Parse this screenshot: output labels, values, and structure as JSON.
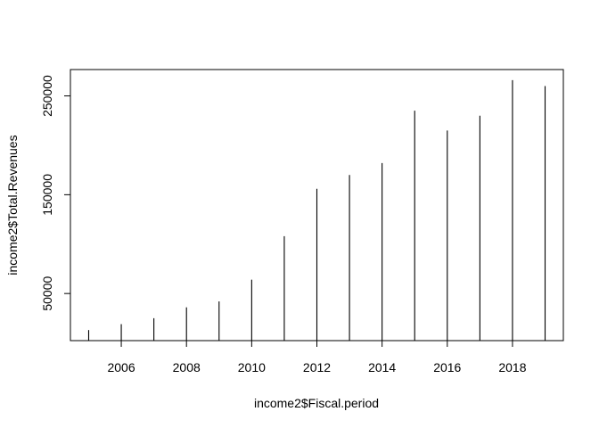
{
  "chart_data": {
    "type": "bar",
    "style": "histogram-lines",
    "title": "",
    "xlabel": "income2$Fiscal.period",
    "ylabel": "income2$Total.Revenues",
    "x": [
      2005,
      2006,
      2007,
      2008,
      2009,
      2010,
      2011,
      2012,
      2013,
      2014,
      2015,
      2016,
      2017,
      2018,
      2019
    ],
    "values": [
      13000,
      19000,
      25000,
      36000,
      42000,
      64000,
      108000,
      156000,
      170000,
      182000,
      235000,
      215000,
      230000,
      266000,
      260000
    ],
    "xticks": [
      2006,
      2008,
      2010,
      2012,
      2014,
      2016,
      2018
    ],
    "xtick_labels": [
      "2006",
      "2008",
      "2010",
      "2012",
      "2014",
      "2016",
      "2018"
    ],
    "yticks": [
      50000,
      150000,
      250000
    ],
    "ytick_labels": [
      "50000",
      "150000",
      "250000"
    ],
    "xlim": [
      2004.44,
      2019.56
    ],
    "ylim": [
      2320,
      276680
    ],
    "grid": false,
    "box": true,
    "line_color": "#000000"
  }
}
